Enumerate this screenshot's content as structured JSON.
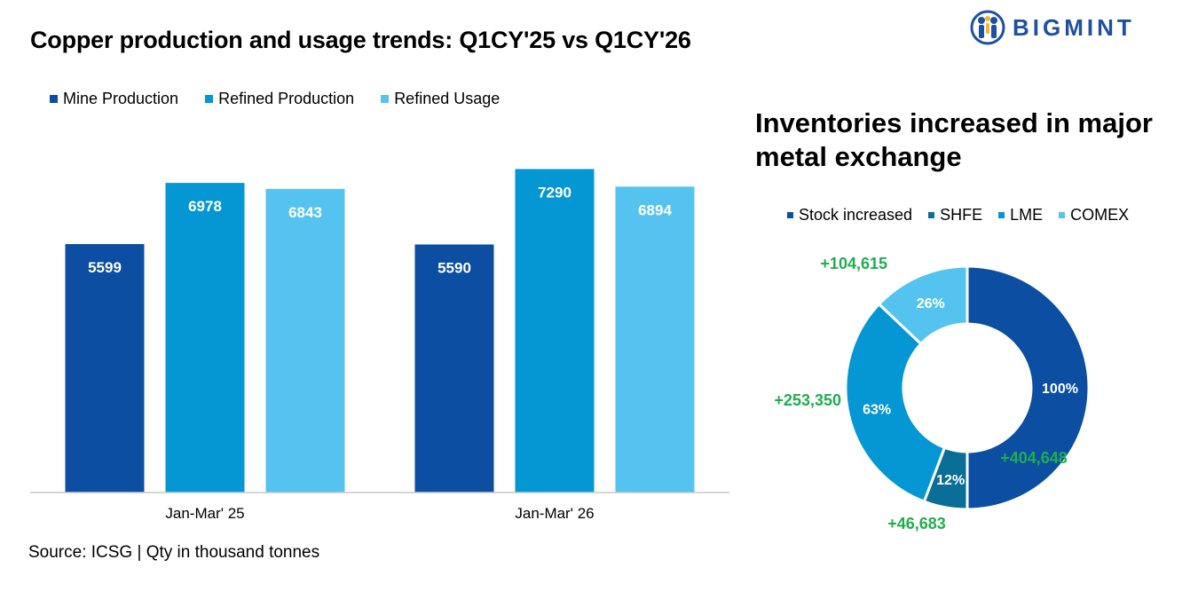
{
  "title": "Copper production and usage trends: Q1CY'25 vs  Q1CY'26",
  "brand": {
    "name": "BIGMINT",
    "color": "#1f4fa0"
  },
  "source": "Source: ICSG | Qty in thousand tonnes",
  "chart_data": [
    {
      "type": "bar",
      "categories": [
        "Jan-Mar' 25",
        "Jan-Mar' 26"
      ],
      "series": [
        {
          "name": "Mine Production",
          "values": [
            5599,
            5590
          ],
          "color": "#0b4ea2"
        },
        {
          "name": "Refined Production",
          "values": [
            6978,
            7290
          ],
          "color": "#0597d3"
        },
        {
          "name": "Refined Usage",
          "values": [
            6843,
            6894
          ],
          "color": "#55c3f0"
        }
      ],
      "ylim": [
        0,
        7800
      ],
      "grid": false,
      "legend": "top-left",
      "data_labels": true
    },
    {
      "type": "pie",
      "title": "Inventories increased in major metal exchange",
      "legend": "top",
      "legend_labels": [
        "Stock increased",
        "SHFE",
        "LME",
        "COMEX"
      ],
      "legend_colors": [
        "#0b4ea2",
        "#0a6e96",
        "#0597d3",
        "#55c3f0"
      ],
      "slices": [
        {
          "label": "Stock increased",
          "value": 404648,
          "percent_label": "100%",
          "value_label": "+404,648",
          "color": "#0b4ea2"
        },
        {
          "label": "SHFE",
          "value": 46683,
          "percent_label": "12%",
          "value_label": "+46,683",
          "color": "#0a6e96"
        },
        {
          "label": "LME",
          "value": 253350,
          "percent_label": "63%",
          "value_label": "+253,350",
          "color": "#0597d3"
        },
        {
          "label": "COMEX",
          "value": 104615,
          "percent_label": "26%",
          "value_label": "+104,615",
          "color": "#55c3f0"
        }
      ],
      "value_label_color": "#1fae4e"
    }
  ]
}
